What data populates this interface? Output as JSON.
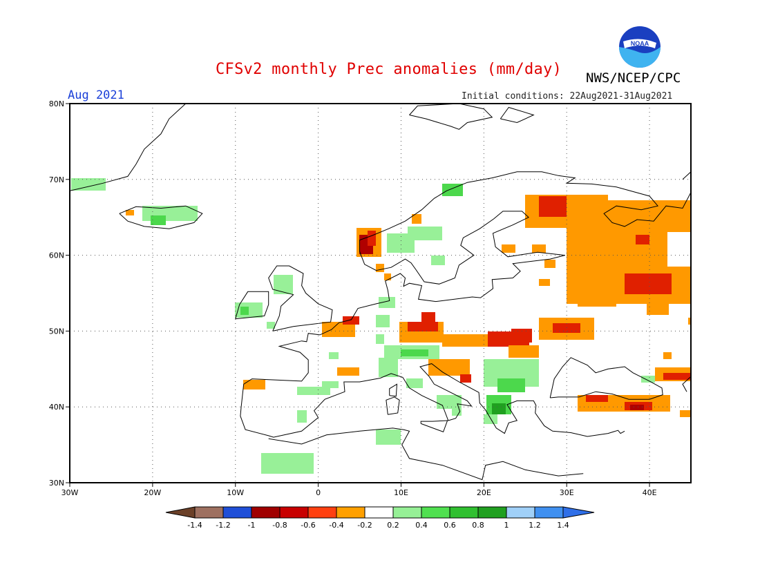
{
  "header": {
    "title": "CFSv2 monthly Prec anomalies (mm/day)",
    "agency": "NWS/NCEP/CPC",
    "logo_text": "NOAA",
    "period": "Aug 2021",
    "initial_conditions": "Initial conditions: 22Aug2021-31Aug2021"
  },
  "map": {
    "lon_range": [
      -30,
      45
    ],
    "lat_range": [
      30,
      80
    ],
    "lon_ticks": [
      "30W",
      "20W",
      "10W",
      "0",
      "10E",
      "20E",
      "30E",
      "40E"
    ],
    "lat_ticks": [
      "30N",
      "40N",
      "50N",
      "60N",
      "70N",
      "80N"
    ],
    "grid": "dotted"
  },
  "colorbar": {
    "labels": [
      "-1.4",
      "-1.2",
      "-1",
      "-0.8",
      "-0.6",
      "-0.4",
      "-0.2",
      "0.2",
      "0.4",
      "0.6",
      "0.8",
      "1",
      "1.2",
      "1.4"
    ],
    "low_end_color": "#6b4028",
    "high_end_color": "#2f6fe8",
    "colors": [
      "#9e7060",
      "#1f4fd8",
      "#a00000",
      "#c80000",
      "#ff4010",
      "#ffa000",
      "#ffffff",
      "#96f096",
      "#50e050",
      "#30c030",
      "#20a020",
      "#a0d0f8",
      "#4090f0"
    ]
  },
  "colors": {
    "dry_strong": "#e02000",
    "dry_very_strong": "#b00000",
    "dry": "#ff9900",
    "wet": "#98f098",
    "wet_moderate": "#4cd84c",
    "wet_strong": "#20a020"
  }
}
